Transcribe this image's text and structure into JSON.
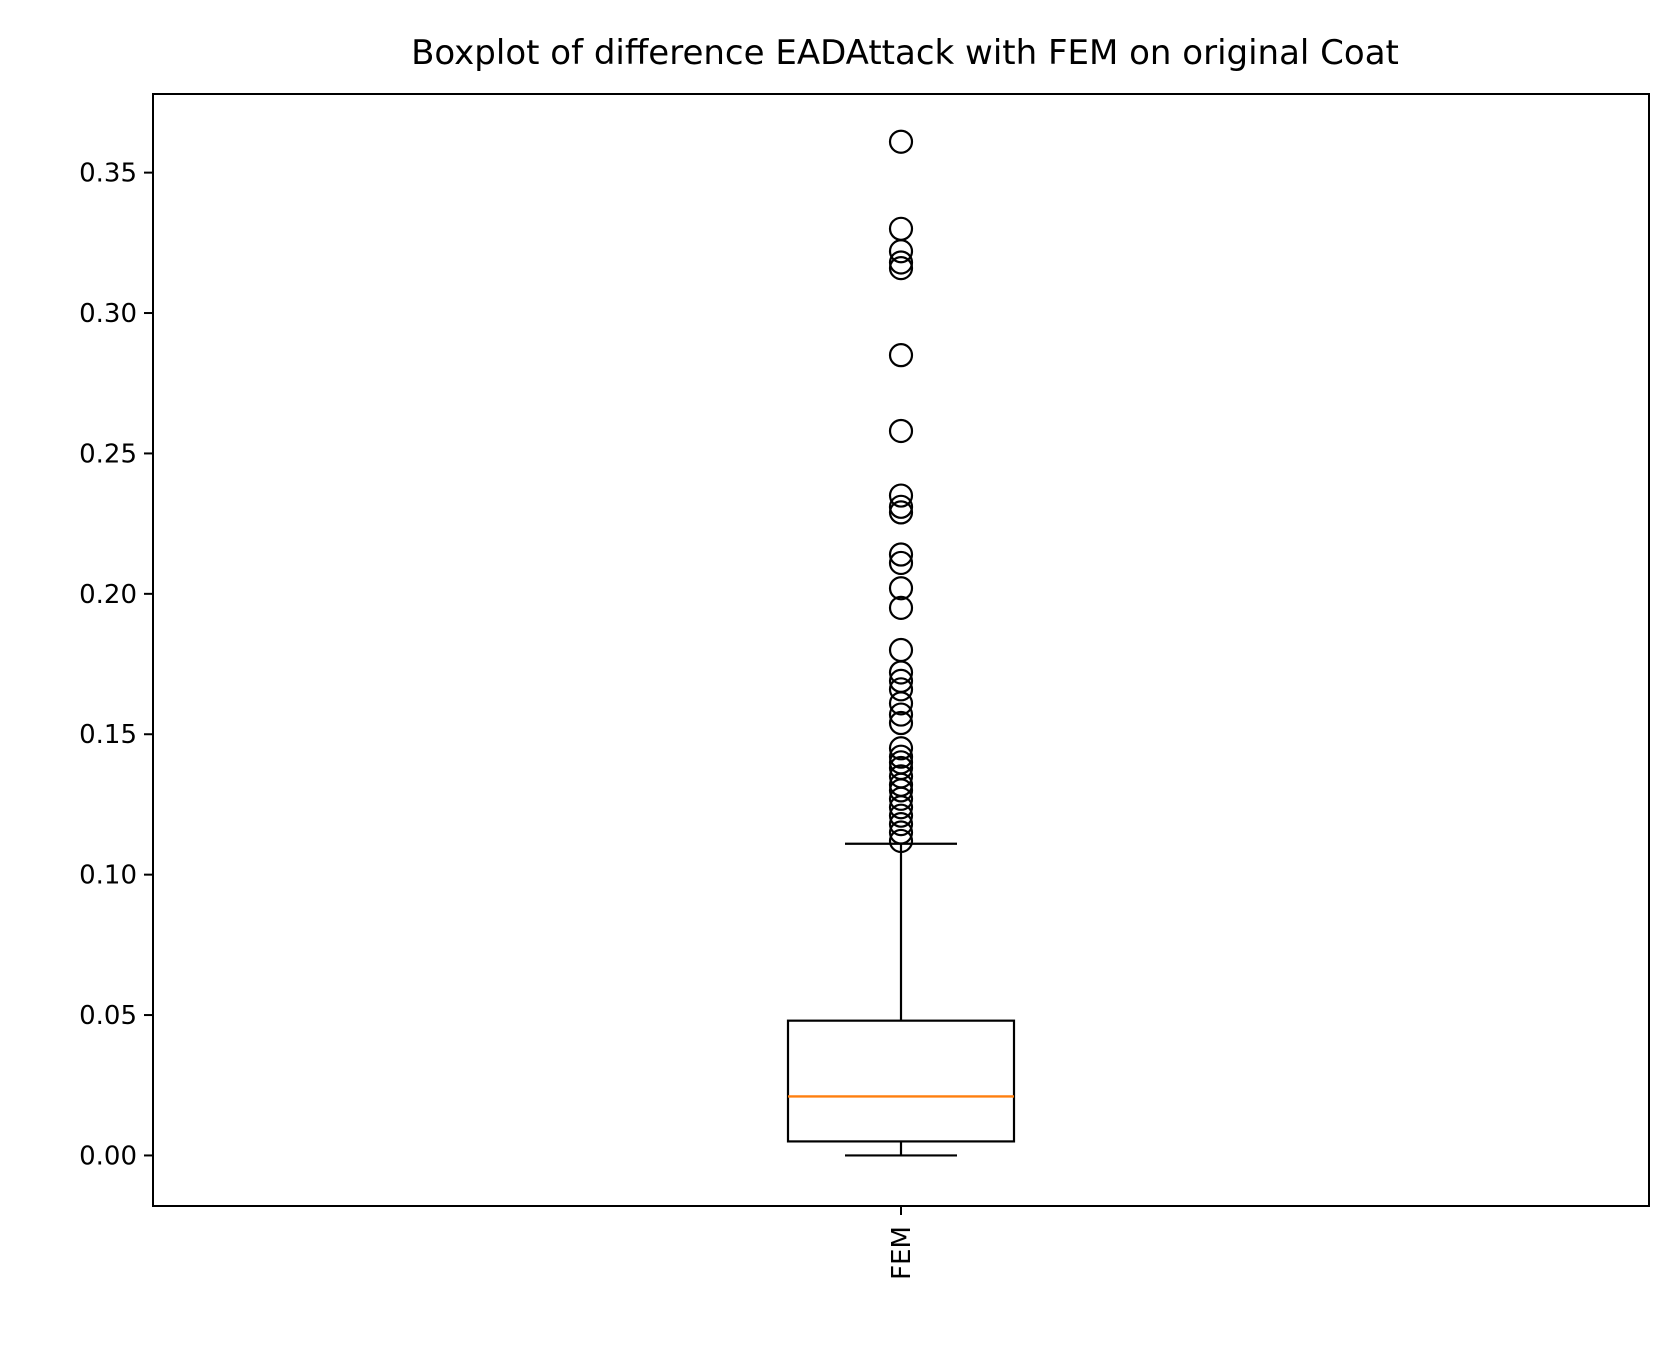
{
  "chart_data": {
    "type": "box",
    "title": "Boxplot of difference EADAttack with FEM on original Coat",
    "xlabel": "",
    "ylabel": "",
    "ylim": [
      -0.018,
      0.378
    ],
    "y_ticks": [
      "0.00",
      "0.05",
      "0.10",
      "0.15",
      "0.20",
      "0.25",
      "0.30",
      "0.35"
    ],
    "y_tick_values": [
      0.0,
      0.05,
      0.1,
      0.15,
      0.2,
      0.25,
      0.3,
      0.35
    ],
    "categories": [
      "FEM"
    ],
    "grid": false,
    "legend": "none",
    "boxes": [
      {
        "category": "FEM",
        "whisker_low": 0.0,
        "q1": 0.005,
        "median": 0.021,
        "q3": 0.048,
        "whisker_high": 0.111,
        "outliers": [
          0.361,
          0.33,
          0.322,
          0.318,
          0.316,
          0.285,
          0.258,
          0.235,
          0.231,
          0.229,
          0.214,
          0.211,
          0.202,
          0.195,
          0.18,
          0.172,
          0.169,
          0.166,
          0.161,
          0.157,
          0.154,
          0.145,
          0.142,
          0.14,
          0.138,
          0.135,
          0.132,
          0.13,
          0.127,
          0.124,
          0.121,
          0.118,
          0.115,
          0.112
        ]
      }
    ],
    "colors": {
      "box": "#000000",
      "median": "#ff7f0e",
      "outlier_edge": "#000000"
    }
  }
}
